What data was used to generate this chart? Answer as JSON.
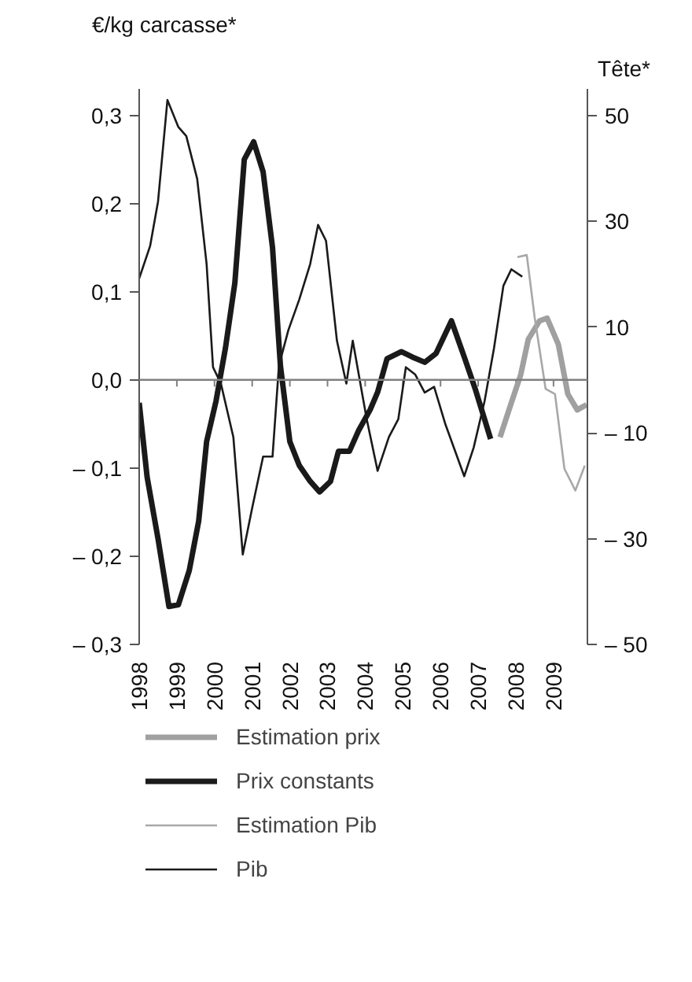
{
  "chart_data": {
    "type": "line",
    "ylabel": "€/kg carcasse*",
    "y2label": "Tête*",
    "xlim": [
      1998,
      2009.9
    ],
    "xticks": [
      1998,
      1999,
      2000,
      2001,
      2002,
      2003,
      2004,
      2005,
      2006,
      2007,
      2008,
      2009
    ],
    "ylim": [
      -0.3,
      0.33
    ],
    "yticks": [
      {
        "value": 0.3,
        "label": "0,3"
      },
      {
        "value": 0.2,
        "label": "0,2"
      },
      {
        "value": 0.1,
        "label": "0,1"
      },
      {
        "value": 0,
        "label": "0,0"
      },
      {
        "value": -0.1,
        "label": "– 0,1"
      },
      {
        "value": -0.2,
        "label": "– 0,2"
      },
      {
        "value": -0.3,
        "label": "– 0,3"
      }
    ],
    "y2lim": [
      -50,
      55
    ],
    "y2ticks": [
      50,
      30,
      10,
      {
        "value": -10,
        "label": "– 10"
      },
      {
        "value": -30,
        "label": "– 30"
      },
      {
        "value": -50,
        "label": "– 50"
      }
    ],
    "ref_lines": [
      {
        "axis": "y",
        "value": 0,
        "color": "#808080"
      }
    ],
    "legend": "bottom",
    "grid": false,
    "series": [
      {
        "name": "Estimation prix",
        "color": "#a0a0a0",
        "axis": "y",
        "x": [
          2007.58,
          2007.88,
          2008.13,
          2008.33,
          2008.63,
          2008.83,
          2009.13,
          2009.38,
          2009.63,
          2009.88
        ],
        "values": [
          -0.065,
          -0.026,
          0.006,
          0.046,
          0.067,
          0.07,
          0.04,
          -0.016,
          -0.034,
          -0.028
        ]
      },
      {
        "name": "Prix constants",
        "color": "#1a1a1a",
        "axis": "y",
        "x": [
          1998.0,
          1998.21,
          1998.5,
          1998.79,
          1999.04,
          1999.33,
          1999.58,
          1999.79,
          2000.04,
          2000.29,
          2000.54,
          2000.79,
          2001.04,
          2001.29,
          2001.54,
          2001.75,
          2002.0,
          2002.25,
          2002.54,
          2002.79,
          2003.08,
          2003.29,
          2003.58,
          2003.83,
          2004.13,
          2004.33,
          2004.58,
          2004.96,
          2005.25,
          2005.58,
          2005.88,
          2006.29,
          2006.63,
          2006.92,
          2007.33
        ],
        "values": [
          -0.026,
          -0.11,
          -0.18,
          -0.257,
          -0.255,
          -0.216,
          -0.16,
          -0.07,
          -0.024,
          0.036,
          0.11,
          0.25,
          0.27,
          0.236,
          0.15,
          0.016,
          -0.07,
          -0.097,
          -0.115,
          -0.127,
          -0.115,
          -0.081,
          -0.081,
          -0.057,
          -0.034,
          -0.014,
          0.024,
          0.032,
          0.026,
          0.02,
          0.03,
          0.067,
          0.026,
          -0.01,
          -0.067
        ]
      },
      {
        "name": "Estimation Pib",
        "color": "#a8a8a8",
        "axis": "y2",
        "x": [
          2008.04,
          2008.29,
          2008.5,
          2008.79,
          2009.04,
          2009.29,
          2009.58,
          2009.83
        ],
        "values": [
          23.2,
          23.6,
          11.8,
          -1.7,
          -2.7,
          -16.8,
          -20.9,
          -16.2
        ]
      },
      {
        "name": "Pib",
        "color": "#1a1a1a",
        "axis": "y2",
        "x": [
          1998.0,
          1998.29,
          1998.5,
          1998.75,
          1999.04,
          1999.25,
          1999.54,
          1999.79,
          1999.96,
          2000.17,
          2000.5,
          2000.75,
          2001.0,
          2001.29,
          2001.54,
          2001.71,
          2001.96,
          2002.25,
          2002.54,
          2002.75,
          2002.96,
          2003.25,
          2003.5,
          2003.67,
          2004.04,
          2004.33,
          2004.63,
          2004.88,
          2005.08,
          2005.33,
          2005.58,
          2005.83,
          2006.13,
          2006.63,
          2006.88,
          2007.17,
          2007.42,
          2007.67,
          2007.88,
          2008.17
        ],
        "values": [
          19.2,
          25.3,
          33.7,
          52.9,
          47.8,
          46.1,
          38.0,
          21.9,
          2.4,
          -0.7,
          -10.8,
          -33.0,
          -24.2,
          -14.5,
          -14.5,
          2.7,
          9.4,
          15.2,
          21.9,
          29.3,
          26.3,
          7.4,
          -0.7,
          7.4,
          -7.4,
          -17.2,
          -10.8,
          -7.4,
          2.4,
          1.0,
          -2.4,
          -1.3,
          -8.4,
          -18.2,
          -12.8,
          -4.0,
          6.0,
          17.8,
          20.9,
          19.5
        ]
      }
    ]
  }
}
